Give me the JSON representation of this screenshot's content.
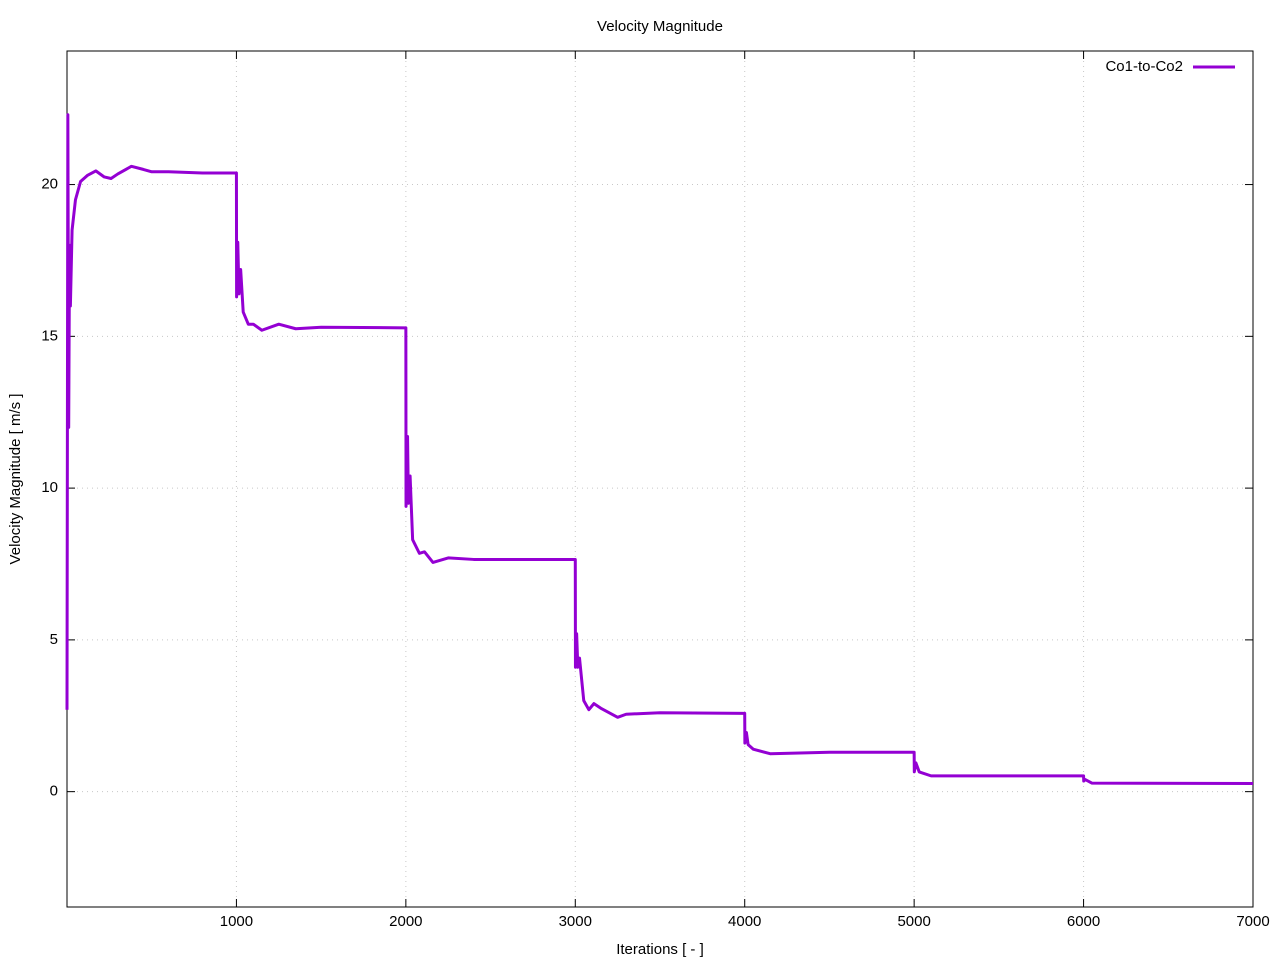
{
  "chart_data": {
    "type": "line",
    "title": "Velocity Magnitude",
    "xlabel": "Iterations [ - ]",
    "ylabel": "Velocity Magnitude [ m/s ]",
    "x": [
      0,
      5,
      10,
      15,
      20,
      30,
      50,
      80,
      120,
      170,
      220,
      260,
      300,
      380,
      450,
      500,
      600,
      800,
      1000,
      1001,
      1008,
      1015,
      1025,
      1040,
      1070,
      1100,
      1150,
      1250,
      1350,
      1500,
      2000,
      2001,
      2010,
      2015,
      2025,
      2040,
      2080,
      2110,
      2160,
      2250,
      2400,
      3000,
      3001,
      3008,
      3015,
      3025,
      3050,
      3080,
      3110,
      3150,
      3250,
      3300,
      3500,
      4000,
      4001,
      4010,
      4020,
      4050,
      4150,
      4500,
      5000,
      5001,
      5010,
      5030,
      5100,
      6000,
      6001,
      6010,
      6050,
      7000
    ],
    "series": [
      {
        "name": "Co1-to-Co2",
        "color": "#9400d3",
        "values": [
          2.7,
          22.3,
          12,
          18,
          16,
          18.5,
          19.5,
          20.1,
          20.3,
          20.45,
          20.25,
          20.2,
          20.35,
          20.6,
          20.5,
          20.42,
          20.42,
          20.38,
          20.38,
          16.3,
          18.1,
          16.4,
          17.2,
          15.8,
          15.4,
          15.4,
          15.2,
          15.4,
          15.25,
          15.3,
          15.28,
          9.4,
          11.7,
          9.5,
          10.4,
          8.3,
          7.85,
          7.9,
          7.55,
          7.7,
          7.65,
          7.65,
          4.1,
          5.2,
          4.1,
          4.4,
          3.0,
          2.7,
          2.9,
          2.75,
          2.45,
          2.55,
          2.6,
          2.58,
          1.6,
          1.95,
          1.55,
          1.4,
          1.25,
          1.3,
          1.3,
          0.65,
          0.95,
          0.65,
          0.52,
          0.52,
          0.35,
          0.4,
          0.28,
          0.27
        ]
      }
    ],
    "xlim": [
      0,
      7000
    ],
    "xticks": [
      1000,
      2000,
      3000,
      4000,
      5000,
      6000,
      7000
    ],
    "ylim": [
      -3.8,
      24.4
    ],
    "yticks": [
      0,
      5,
      10,
      15,
      20
    ],
    "grid": true,
    "legend": "top-right"
  }
}
